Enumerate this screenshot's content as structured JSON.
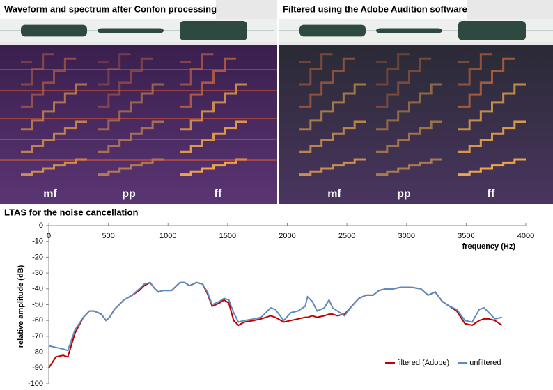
{
  "figure": {
    "panels": [
      {
        "title": "Waveform and spectrum after Confon processing",
        "labels": [
          "mf",
          "pp",
          "ff"
        ]
      },
      {
        "title": "Filtered using the Adobe Audition software",
        "labels": [
          "mf",
          "pp",
          "ff"
        ]
      }
    ]
  },
  "chart_data": {
    "type": "line",
    "title": "LTAS for the noise cancellation",
    "x_label": "frequency (Hz)",
    "y_label": "relative amplitude (dB)",
    "x": [
      0,
      60,
      120,
      160,
      220,
      290,
      340,
      380,
      440,
      480,
      510,
      550,
      630,
      700,
      760,
      800,
      850,
      890,
      920,
      960,
      1030,
      1100,
      1140,
      1180,
      1240,
      1290,
      1330,
      1370,
      1430,
      1470,
      1510,
      1550,
      1590,
      1640,
      1720,
      1780,
      1860,
      1900,
      1970,
      2030,
      2090,
      2150,
      2170,
      2210,
      2250,
      2310,
      2350,
      2380,
      2420,
      2480,
      2540,
      2600,
      2660,
      2720,
      2770,
      2830,
      2890,
      2950,
      3040,
      3120,
      3180,
      3240,
      3300,
      3360,
      3420,
      3490,
      3550,
      3610,
      3650,
      3690,
      3740,
      3800
    ],
    "series": [
      {
        "name": "filtered (Adobe)",
        "color": "#c00000",
        "values": [
          -90,
          -83,
          -82,
          -83,
          -68,
          -58,
          -54,
          -54,
          -56,
          -60,
          -58,
          -53,
          -47,
          -44,
          -41,
          -38,
          -36,
          -40,
          -42,
          -41,
          -41,
          -36,
          -36,
          -38,
          -36,
          -37,
          -43,
          -51,
          -49,
          -47,
          -49,
          -60,
          -63,
          -61,
          -60,
          -59,
          -57,
          -58,
          -61,
          -60,
          -59,
          -58,
          -58,
          -57,
          -58,
          -57,
          -56,
          -56,
          -57,
          -56,
          -51,
          -46,
          -44,
          -44,
          -41,
          -40,
          -40,
          -39,
          -39,
          -40,
          -44,
          -42,
          -48,
          -51,
          -54,
          -62,
          -63,
          -60,
          -59,
          -59,
          -60,
          -63
        ]
      },
      {
        "name": "unfiltered",
        "color": "#5b8bbf",
        "values": [
          -76,
          -77,
          -78,
          -79,
          -66,
          -58,
          -54,
          -54,
          -56,
          -60,
          -58,
          -53,
          -47,
          -44,
          -40,
          -37,
          -36,
          -40,
          -42,
          -41,
          -41,
          -36,
          -36,
          -38,
          -36,
          -37,
          -42,
          -50,
          -48,
          -46,
          -47,
          -55,
          -61,
          -60,
          -59,
          -58,
          -52,
          -53,
          -60,
          -55,
          -54,
          -51,
          -45,
          -48,
          -54,
          -52,
          -47,
          -52,
          -54,
          -57,
          -51,
          -46,
          -44,
          -44,
          -41,
          -40,
          -40,
          -39,
          -39,
          -40,
          -44,
          -42,
          -48,
          -51,
          -53,
          -60,
          -61,
          -53,
          -52,
          -55,
          -59,
          -58
        ]
      }
    ],
    "xlim": [
      0,
      4000
    ],
    "xticks": [
      0,
      500,
      1000,
      1500,
      2000,
      2500,
      3000,
      3500,
      4000
    ],
    "ylim": [
      -100,
      0
    ],
    "yticks": [
      0,
      -10,
      -20,
      -30,
      -40,
      -50,
      -60,
      -70,
      -80,
      -90,
      -100
    ],
    "grid": false,
    "legend": "lower right"
  }
}
